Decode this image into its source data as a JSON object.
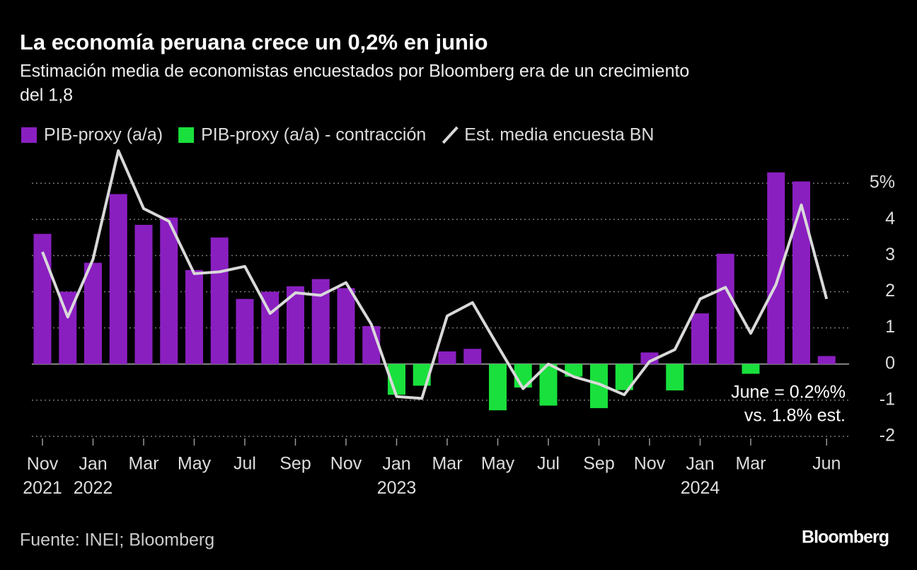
{
  "chart_data": {
    "type": "bar-line",
    "title": "La economía peruana crece un 0,2% en junio",
    "subtitle": [
      "Estimación media de economistas encuestados por Bloomberg era de un crecimiento",
      "del 1,8"
    ],
    "source": "Fuente: INEI; Bloomberg",
    "brand": "Bloomberg",
    "annotation": [
      "June = 0.2%%",
      "vs. 1.8% est."
    ],
    "categories": [
      "Nov 2021",
      null,
      "Jan 2022",
      null,
      "Mar",
      null,
      "May",
      null,
      "Jul",
      null,
      "Sep",
      null,
      "Nov",
      null,
      "Jan 2023",
      null,
      "Mar",
      null,
      "May",
      null,
      "Jul",
      null,
      "Sep",
      null,
      "Nov",
      null,
      "Jan 2024",
      null,
      "Mar",
      null,
      null,
      "Jun"
    ],
    "series": [
      {
        "name": "PIB-proxy (a/a)",
        "type": "bar",
        "color": "#8a1fc0",
        "values": [
          3.6,
          2.0,
          2.8,
          4.7,
          3.85,
          4.05,
          2.6,
          3.5,
          1.8,
          2.0,
          2.15,
          2.35,
          2.1,
          1.05,
          null,
          null,
          0.35,
          0.42,
          null,
          null,
          null,
          null,
          null,
          null,
          0.32,
          null,
          1.4,
          3.05,
          null,
          5.3,
          5.05,
          0.22
        ]
      },
      {
        "name": "PIB-proxy (a/a) - contracción",
        "type": "bar",
        "color": "#19e03c",
        "values": [
          null,
          null,
          null,
          null,
          null,
          null,
          null,
          null,
          null,
          null,
          null,
          null,
          null,
          null,
          -0.85,
          -0.6,
          null,
          null,
          -1.28,
          -0.65,
          -1.15,
          -0.35,
          -1.22,
          -0.72,
          null,
          -0.73,
          null,
          null,
          -0.27,
          null,
          null,
          null
        ]
      },
      {
        "name": "Est. media encuesta BN",
        "type": "line",
        "color": "#d9d9d9",
        "values": [
          3.1,
          1.3,
          2.9,
          5.9,
          4.3,
          3.95,
          2.5,
          2.55,
          2.7,
          1.4,
          1.97,
          1.9,
          2.25,
          1.1,
          -0.9,
          -0.95,
          1.33,
          1.7,
          0.5,
          -0.68,
          0.0,
          -0.35,
          -0.55,
          -0.85,
          0.07,
          0.4,
          1.8,
          2.12,
          0.85,
          2.2,
          4.4,
          1.8
        ]
      }
    ],
    "ylim": [
      -2,
      6
    ],
    "yticks": [
      -2,
      -1,
      0,
      1,
      2,
      3,
      4,
      {
        "value": 5,
        "label": "5%"
      }
    ],
    "grid": true
  }
}
